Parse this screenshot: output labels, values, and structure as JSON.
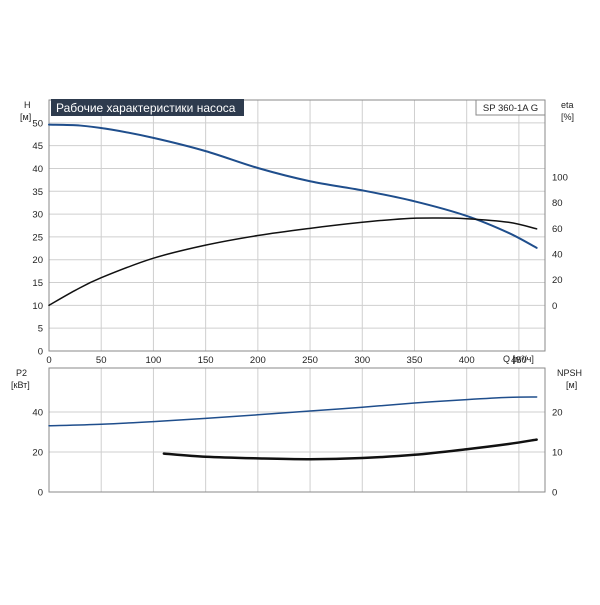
{
  "chart_data": [
    {
      "type": "line",
      "title": "Рабочие характеристики насоса",
      "model_label": "SP 360-1A G",
      "xlabel": "Q [м³/ч]",
      "x_ticks": [
        0,
        50,
        100,
        150,
        200,
        250,
        300,
        350,
        400,
        450
      ],
      "xlim": [
        0,
        475
      ],
      "left_axis": {
        "label_line1": "H",
        "label_line2": "[м]",
        "ylim": [
          0,
          55
        ],
        "ticks": [
          0,
          5,
          10,
          15,
          20,
          25,
          30,
          35,
          40,
          45,
          50
        ]
      },
      "right_axis": {
        "label_line1": "eta",
        "label_line2": "[%]",
        "ylim": [
          -35.6,
          160
        ],
        "ticks": [
          0,
          20,
          40,
          60,
          80,
          100
        ]
      },
      "grid": true,
      "series": [
        {
          "axis": "left",
          "color": "#1f4e8c",
          "points": [
            [
              0,
              49.6
            ],
            [
              30,
              49.4
            ],
            [
              60,
              48.5
            ],
            [
              100,
              46.7
            ],
            [
              150,
              43.8
            ],
            [
              200,
              40.1
            ],
            [
              250,
              37.2
            ],
            [
              300,
              35.2
            ],
            [
              350,
              32.8
            ],
            [
              400,
              29.6
            ],
            [
              440,
              25.9
            ],
            [
              467,
              22.6
            ]
          ]
        },
        {
          "axis": "right",
          "color": "#111111",
          "points": [
            [
              0,
              0
            ],
            [
              25,
              11.6
            ],
            [
              50,
              21.5
            ],
            [
              100,
              36.7
            ],
            [
              150,
              46.9
            ],
            [
              200,
              54.4
            ],
            [
              250,
              60.0
            ],
            [
              300,
              64.7
            ],
            [
              340,
              67.5
            ],
            [
              370,
              68.0
            ],
            [
              400,
              67.5
            ],
            [
              440,
              64.7
            ],
            [
              467,
              59.6
            ]
          ]
        }
      ]
    },
    {
      "type": "line",
      "xlim": [
        0,
        475
      ],
      "left_axis": {
        "label_line1": "P2",
        "label_line2": "[кВт]",
        "ylim": [
          0,
          62
        ],
        "ticks": [
          0,
          20,
          40
        ]
      },
      "right_axis": {
        "label_line1": "NPSH",
        "label_line2": "[м]",
        "ylim": [
          0,
          31
        ],
        "ticks": [
          0,
          10,
          20
        ]
      },
      "grid": true,
      "series": [
        {
          "axis": "left",
          "color": "#1f4e8c",
          "points": [
            [
              0,
              33.1
            ],
            [
              50,
              33.9
            ],
            [
              100,
              35.2
            ],
            [
              150,
              36.8
            ],
            [
              200,
              38.6
            ],
            [
              250,
              40.5
            ],
            [
              300,
              42.4
            ],
            [
              350,
              44.5
            ],
            [
              400,
              46.2
            ],
            [
              440,
              47.3
            ],
            [
              467,
              47.5
            ]
          ]
        },
        {
          "axis": "right",
          "color": "#111111",
          "points": [
            [
              110,
              9.6
            ],
            [
              150,
              8.8
            ],
            [
              200,
              8.4
            ],
            [
              250,
              8.2
            ],
            [
              300,
              8.5
            ],
            [
              350,
              9.3
            ],
            [
              400,
              10.7
            ],
            [
              440,
              12.0
            ],
            [
              467,
              13.1
            ]
          ]
        }
      ]
    }
  ]
}
